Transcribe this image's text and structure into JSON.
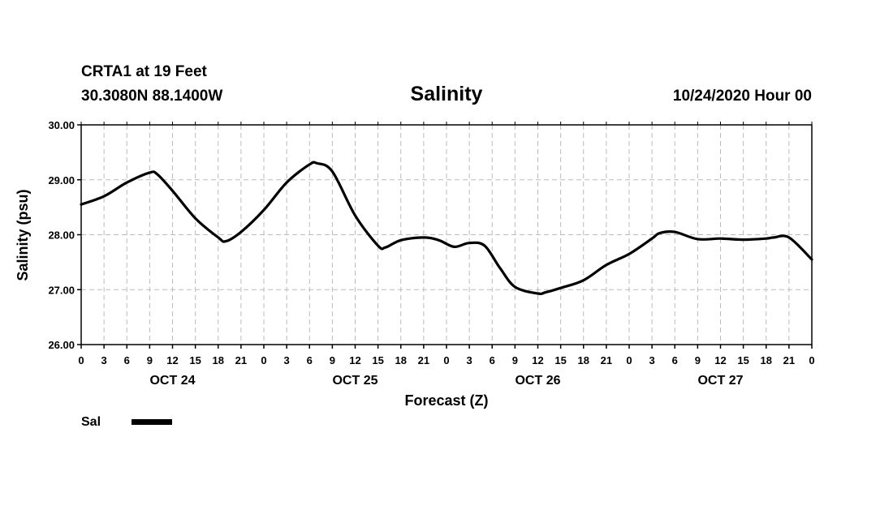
{
  "header": {
    "station": "CRTA1 at 19 Feet",
    "coords": "30.3080N 88.1400W",
    "title": "Salinity",
    "datetime": "10/24/2020 Hour 00"
  },
  "chart_data": {
    "type": "line",
    "title": "Salinity",
    "xlabel": "Forecast (Z)",
    "ylabel": "Salinity (psu)",
    "ylim": [
      26.0,
      30.0
    ],
    "yticks": [
      "26.00",
      "27.00",
      "28.00",
      "29.00",
      "30.00"
    ],
    "xlim": [
      0,
      96
    ],
    "xtick_labels": [
      "0",
      "3",
      "6",
      "9",
      "12",
      "15",
      "18",
      "21",
      "0",
      "3",
      "6",
      "9",
      "12",
      "15",
      "18",
      "21",
      "0",
      "3",
      "6",
      "9",
      "12",
      "15",
      "18",
      "21",
      "0",
      "3",
      "6",
      "9",
      "12",
      "15",
      "18",
      "21",
      "0"
    ],
    "day_labels": [
      {
        "label": "OCT 24",
        "hour": 12
      },
      {
        "label": "OCT 25",
        "hour": 36
      },
      {
        "label": "OCT 26",
        "hour": 60
      },
      {
        "label": "OCT 27",
        "hour": 84
      }
    ],
    "grid": true,
    "series": [
      {
        "name": "Sal",
        "color": "#000000",
        "x": [
          0,
          3,
          6,
          9,
          10,
          12,
          15,
          18,
          19,
          21,
          24,
          27,
          30,
          31,
          33,
          36,
          39,
          40,
          42,
          45,
          47,
          49,
          51,
          53,
          55,
          57,
          60,
          61,
          63,
          66,
          69,
          72,
          75,
          76,
          78,
          81,
          84,
          87,
          90,
          91,
          93,
          96
        ],
        "y": [
          28.55,
          28.7,
          28.95,
          29.13,
          29.1,
          28.8,
          28.3,
          27.95,
          27.88,
          28.05,
          28.45,
          28.95,
          29.28,
          29.3,
          29.15,
          28.35,
          27.8,
          27.77,
          27.9,
          27.95,
          27.9,
          27.78,
          27.85,
          27.8,
          27.4,
          27.05,
          26.93,
          26.95,
          27.03,
          27.17,
          27.45,
          27.65,
          27.93,
          28.03,
          28.05,
          27.92,
          27.93,
          27.91,
          27.93,
          27.95,
          27.95,
          27.55
        ]
      }
    ]
  },
  "legend": {
    "label": "Sal",
    "color": "#000000"
  }
}
